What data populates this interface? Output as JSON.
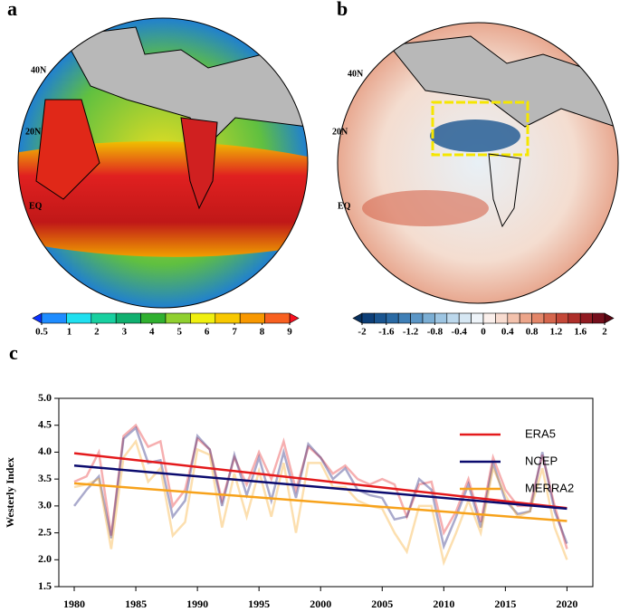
{
  "panels": [
    {
      "label": "a",
      "lat_labels": [
        "40N",
        "20N",
        "EQ"
      ],
      "colorbar": {
        "labels": [
          0.5,
          1,
          2,
          3,
          4,
          5,
          6,
          7,
          8,
          9
        ],
        "colors": [
          "#0a32ff",
          "#1e8cff",
          "#20e0f0",
          "#18d0a0",
          "#10b070",
          "#30b030",
          "#90d030",
          "#f0f010",
          "#f8c800",
          "#f89800",
          "#f86020",
          "#f81020"
        ]
      }
    },
    {
      "label": "b",
      "lat_labels": [
        "40N",
        "20N",
        "EQ"
      ],
      "colorbar": {
        "labels": [
          -2,
          -1.6,
          -1.2,
          -0.8,
          -0.4,
          0,
          0.4,
          0.8,
          1.2,
          1.6,
          2
        ],
        "colors": [
          "#08305e",
          "#0d3f78",
          "#1a5590",
          "#2a6aa4",
          "#3f7fb6",
          "#5b96c6",
          "#7baed4",
          "#9dc5e2",
          "#bcd8ec",
          "#d6e7f3",
          "#eef4f9",
          "#fbf0ec",
          "#f8dcd0",
          "#f3c2ad",
          "#eca58a",
          "#e38669",
          "#d5664d",
          "#c44838",
          "#ae2f2a",
          "#921c22",
          "#750f1c",
          "#5a0613"
        ]
      }
    }
  ],
  "chart_data": {
    "type": "line",
    "panel_label": "c",
    "y_label": "Westerly Index",
    "x": [
      1980,
      1981,
      1982,
      1983,
      1984,
      1985,
      1986,
      1987,
      1988,
      1989,
      1990,
      1991,
      1992,
      1993,
      1994,
      1995,
      1996,
      1997,
      1998,
      1999,
      2000,
      2001,
      2002,
      2003,
      2004,
      2005,
      2006,
      2007,
      2008,
      2009,
      2010,
      2011,
      2012,
      2013,
      2014,
      2015,
      2016,
      2017,
      2018,
      2019,
      2020
    ],
    "trend_x": [
      1980,
      2020
    ],
    "series": [
      {
        "name": "ERA5",
        "color": "#e41a1c",
        "values": [
          3.45,
          3.55,
          4.0,
          2.45,
          4.3,
          4.5,
          4.1,
          4.2,
          3.0,
          3.3,
          4.25,
          4.05,
          3.1,
          3.9,
          3.4,
          4.0,
          3.5,
          4.2,
          3.3,
          4.1,
          3.9,
          3.6,
          3.75,
          3.5,
          3.4,
          3.5,
          3.4,
          2.8,
          3.4,
          3.45,
          2.5,
          2.9,
          3.5,
          2.7,
          3.9,
          3.3,
          3.0,
          3.0,
          3.95,
          3.0,
          2.2
        ],
        "trend": [
          3.98,
          2.96
        ]
      },
      {
        "name": "NCEP",
        "color": "#0b0b6e",
        "values": [
          3.0,
          3.3,
          3.55,
          2.4,
          4.25,
          4.45,
          3.8,
          3.85,
          2.8,
          3.1,
          4.3,
          4.05,
          3.0,
          3.95,
          3.2,
          3.9,
          3.1,
          4.0,
          3.15,
          4.15,
          3.9,
          3.5,
          3.7,
          3.3,
          3.2,
          3.15,
          2.75,
          2.8,
          3.5,
          3.3,
          2.25,
          2.8,
          3.4,
          2.6,
          3.8,
          3.1,
          2.85,
          2.9,
          4.0,
          2.9,
          2.3
        ],
        "trend": [
          3.75,
          2.95
        ]
      },
      {
        "name": "MERRA2",
        "color": "#f7a21b",
        "values": [
          3.35,
          3.4,
          3.5,
          2.2,
          3.9,
          4.2,
          3.45,
          3.7,
          2.45,
          2.7,
          4.05,
          3.95,
          2.6,
          3.6,
          2.8,
          3.65,
          2.8,
          3.8,
          2.5,
          3.8,
          3.8,
          3.35,
          3.35,
          3.1,
          3.0,
          2.95,
          2.5,
          2.15,
          3.0,
          3.0,
          1.95,
          2.5,
          3.1,
          2.5,
          3.7,
          3.2,
          2.8,
          2.9,
          3.7,
          2.6,
          2.0
        ],
        "trend": [
          3.42,
          2.72
        ]
      }
    ],
    "xlim": [
      1978.75,
      2022.1
    ],
    "xticks": [
      1980,
      1985,
      1990,
      1995,
      2000,
      2005,
      2010,
      2015,
      2020
    ],
    "ylim": [
      1.5,
      5.0
    ],
    "yticks": [
      1.5,
      {
        "value": 2.0,
        "label": "2.0"
      },
      2.5,
      {
        "value": 3.0,
        "label": "3.0"
      },
      3.5,
      {
        "value": 4.0,
        "label": "4.0"
      },
      4.5,
      {
        "value": 5.0,
        "label": "5.0"
      }
    ]
  }
}
